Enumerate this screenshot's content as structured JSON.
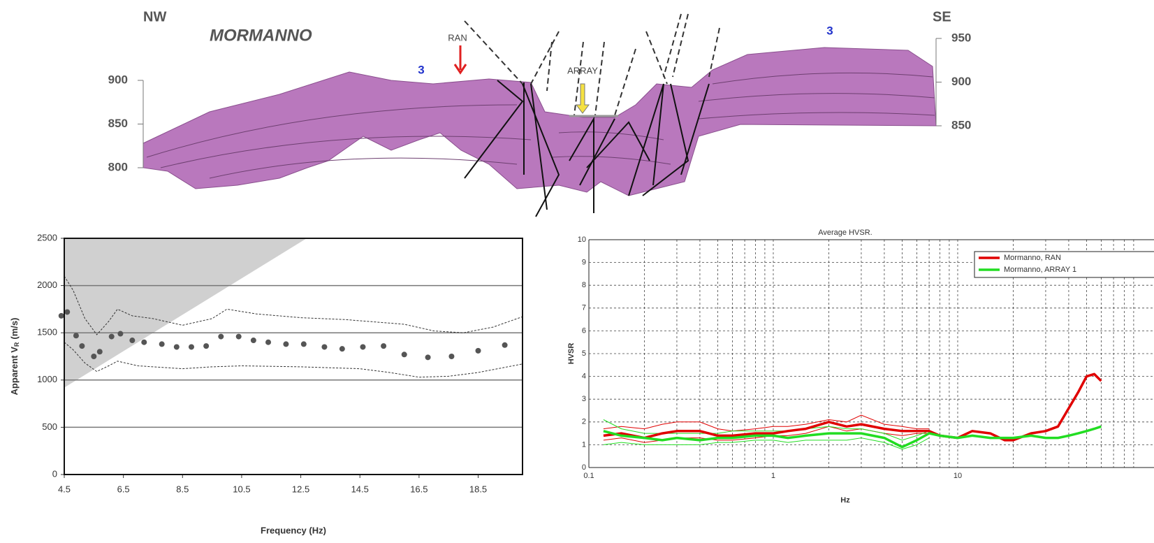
{
  "section": {
    "left_end": "NW",
    "right_end": "SE",
    "title": "MORMANNO",
    "markers": [
      "RAN",
      "ARRAY"
    ],
    "unit_labels": [
      "3",
      "3"
    ],
    "left_ticks": [
      900,
      850,
      800
    ],
    "right_ticks": [
      950,
      900,
      850
    ]
  },
  "chart_data": [
    {
      "type": "scatter",
      "x_label": "Frequency (Hz)",
      "y_label": "Apparent V",
      "y_label_subscript": "R",
      "y_label_unit": "(m/s)",
      "x": [
        4.4,
        4.6,
        4.9,
        5.1,
        5.5,
        5.7,
        6.1,
        6.4,
        6.8,
        7.2,
        7.8,
        8.3,
        8.8,
        9.3,
        9.8,
        10.4,
        10.9,
        11.4,
        12.0,
        12.6,
        13.3,
        13.9,
        14.6,
        15.3,
        16.0,
        16.8,
        17.6,
        18.5,
        19.4
      ],
      "values": [
        1680,
        1720,
        1470,
        1360,
        1250,
        1300,
        1460,
        1490,
        1420,
        1400,
        1380,
        1350,
        1350,
        1360,
        1460,
        1460,
        1420,
        1400,
        1380,
        1380,
        1350,
        1330,
        1350,
        1360,
        1270,
        1240,
        1250,
        1310,
        1370
      ],
      "color": "#555555",
      "envelope": {
        "color": "#333333",
        "upper": {
          "x": [
            4.5,
            4.8,
            5.2,
            5.6,
            6.0,
            6.3,
            6.8,
            7.5,
            8.5,
            9.5,
            10.0,
            11.0,
            12.5,
            14.0,
            16.0,
            17.0,
            18.0,
            19.0,
            20.0
          ],
          "values": [
            2100,
            1950,
            1650,
            1480,
            1620,
            1750,
            1680,
            1650,
            1580,
            1650,
            1750,
            1700,
            1660,
            1640,
            1590,
            1520,
            1500,
            1560,
            1670
          ]
        },
        "lower": {
          "x": [
            4.5,
            4.8,
            5.2,
            5.6,
            6.0,
            6.3,
            7.0,
            8.5,
            9.5,
            10.5,
            12.5,
            14.5,
            15.5,
            16.5,
            17.5,
            18.5,
            20.0
          ],
          "values": [
            1400,
            1320,
            1180,
            1090,
            1150,
            1200,
            1150,
            1120,
            1140,
            1150,
            1140,
            1120,
            1080,
            1030,
            1040,
            1080,
            1170
          ]
        }
      },
      "resolution_limit": {
        "x": [
          4.5,
          12.7
        ],
        "values": [
          920,
          2500
        ],
        "color": "#c8c8c8"
      },
      "xlim": [
        4.5,
        20
      ],
      "ylim": [
        0,
        2500
      ],
      "xticks": [
        4.5,
        6.5,
        8.5,
        10.5,
        12.5,
        14.5,
        16.5,
        18.5
      ],
      "yticks": [
        0,
        500,
        1000,
        1500,
        2000,
        2500
      ],
      "grid": true
    },
    {
      "type": "line",
      "title": "Average HVSR.",
      "x_label": "Hz",
      "y_label": "HVSR",
      "log_x": true,
      "legend": "upper right",
      "x": [
        0.12,
        0.15,
        0.2,
        0.25,
        0.3,
        0.4,
        0.5,
        0.6,
        0.8,
        1,
        1.2,
        1.5,
        2,
        2.5,
        3,
        4,
        5,
        6,
        7,
        8,
        10,
        12,
        15,
        18,
        20,
        25,
        30,
        35,
        40,
        45,
        50,
        55,
        60
      ],
      "series": [
        {
          "name": "Mormanno, RAN",
          "color": "#e00000",
          "values": [
            1.4,
            1.5,
            1.3,
            1.5,
            1.6,
            1.6,
            1.4,
            1.4,
            1.5,
            1.5,
            1.6,
            1.7,
            2.0,
            1.8,
            1.9,
            1.7,
            1.6,
            1.6,
            1.6,
            1.4,
            1.3,
            1.6,
            1.5,
            1.2,
            1.2,
            1.5,
            1.6,
            1.8,
            2.6,
            3.3,
            4.0,
            4.1,
            3.8
          ],
          "upper": [
            1.7,
            1.8,
            1.7,
            1.9,
            2.0,
            2.0,
            1.7,
            1.6,
            1.7,
            1.8,
            1.8,
            1.9,
            2.1,
            2.0,
            2.3,
            1.9,
            1.8,
            1.7,
            1.7,
            null,
            null,
            null,
            null,
            null,
            null,
            null,
            null,
            null,
            null,
            null,
            null,
            null,
            null
          ],
          "lower": [
            1.2,
            1.3,
            1.1,
            1.2,
            1.3,
            1.3,
            1.2,
            1.2,
            1.3,
            1.4,
            1.4,
            1.5,
            1.8,
            1.6,
            1.7,
            1.5,
            1.4,
            1.5,
            1.5,
            null,
            null,
            null,
            null,
            null,
            null,
            null,
            null,
            null,
            null,
            null,
            null,
            null,
            null
          ]
        },
        {
          "name": "Mormanno, ARRAY 1",
          "color": "#22dd22",
          "values": [
            1.6,
            1.4,
            1.3,
            1.2,
            1.3,
            1.2,
            1.3,
            1.3,
            1.4,
            1.4,
            1.3,
            1.4,
            1.5,
            1.5,
            1.5,
            1.3,
            0.9,
            1.2,
            1.5,
            1.4,
            1.3,
            1.4,
            1.3,
            1.3,
            1.3,
            1.4,
            1.3,
            1.3,
            1.4,
            1.5,
            1.6,
            1.7,
            1.8
          ],
          "upper": [
            2.1,
            1.7,
            1.5,
            1.5,
            1.5,
            1.5,
            1.5,
            1.6,
            1.6,
            1.6,
            1.6,
            1.7,
            1.8,
            1.7,
            1.7,
            1.5,
            1.2,
            1.4,
            1.6,
            null,
            null,
            null,
            null,
            null,
            null,
            null,
            null,
            null,
            null,
            null,
            null,
            null,
            null
          ],
          "lower": [
            1.0,
            1.1,
            1.0,
            1.0,
            1.0,
            1.0,
            1.1,
            1.1,
            1.2,
            1.2,
            1.1,
            1.2,
            1.2,
            1.2,
            1.3,
            1.1,
            0.8,
            1.0,
            1.3,
            null,
            null,
            null,
            null,
            null,
            null,
            null,
            null,
            null,
            null,
            null,
            null,
            null,
            null
          ]
        }
      ],
      "xlim": [
        0.1,
        115
      ],
      "ylim": [
        0,
        10
      ],
      "xticks": [
        0.1,
        1,
        10
      ],
      "yticks": [
        0,
        1,
        2,
        3,
        4,
        5,
        6,
        7,
        8,
        9,
        10
      ],
      "x_minor_grid": [
        0.2,
        0.3,
        0.4,
        0.5,
        0.6,
        0.7,
        0.8,
        0.9,
        2,
        3,
        4,
        5,
        6,
        7,
        8,
        9,
        20,
        30,
        40,
        50,
        60,
        70,
        80,
        90
      ],
      "grid": true
    }
  ]
}
